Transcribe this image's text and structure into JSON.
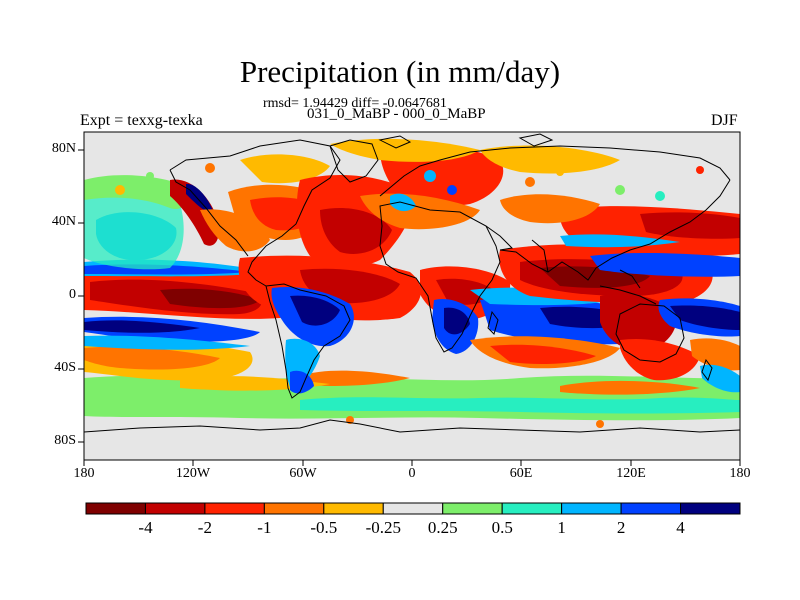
{
  "title": "Precipitation (in mm/day)",
  "stats_line": "rmsd= 1.94429 diff= -0.0647681",
  "case_line": "031_0_MaBP - 000_0_MaBP",
  "experiment": "Expt = texxg-texka",
  "season": "DJF",
  "x_ticks": [
    "180",
    "120W",
    "60W",
    "0",
    "60E",
    "120E",
    "180"
  ],
  "y_ticks": [
    "80N",
    "40N",
    "0",
    "40S",
    "80S"
  ],
  "colorbar": {
    "colors": [
      "#7f0000",
      "#c20000",
      "#ff2200",
      "#ff7400",
      "#ffba00",
      "#e6e6e6",
      "#7dee6a",
      "#27eec0",
      "#00b5ff",
      "#0041ff",
      "#00007f"
    ],
    "labels": [
      "-4",
      "-2",
      "-1",
      "-0.5",
      "-0.25",
      "0.25",
      "0.5",
      "1",
      "2",
      "4"
    ]
  },
  "legend_note": "Filled contours of precipitation difference (mm/day), DJF, with coastline overlay"
}
